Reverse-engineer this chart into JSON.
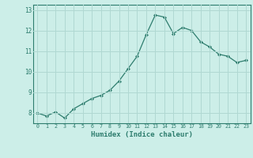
{
  "x": [
    0,
    1,
    2,
    3,
    4,
    5,
    6,
    7,
    8,
    9,
    10,
    11,
    12,
    13,
    14,
    15,
    16,
    17,
    18,
    19,
    20,
    21,
    22,
    23
  ],
  "y": [
    8.0,
    7.85,
    8.05,
    7.75,
    8.2,
    8.45,
    8.7,
    8.85,
    9.1,
    9.55,
    10.15,
    10.75,
    11.8,
    12.75,
    12.65,
    11.85,
    12.15,
    12.0,
    11.45,
    11.2,
    10.85,
    10.75,
    10.45,
    10.55
  ],
  "line_color": "#2e7d6e",
  "marker_color": "#2e7d6e",
  "bg_color": "#cceee8",
  "grid_color": "#b0d8d2",
  "axis_label_color": "#2e7d6e",
  "xlabel": "Humidex (Indice chaleur)",
  "ylim": [
    7.5,
    13.25
  ],
  "xlim": [
    -0.5,
    23.5
  ],
  "yticks": [
    8,
    9,
    10,
    11,
    12,
    13
  ],
  "xticks": [
    0,
    1,
    2,
    3,
    4,
    5,
    6,
    7,
    8,
    9,
    10,
    11,
    12,
    13,
    14,
    15,
    16,
    17,
    18,
    19,
    20,
    21,
    22,
    23
  ]
}
